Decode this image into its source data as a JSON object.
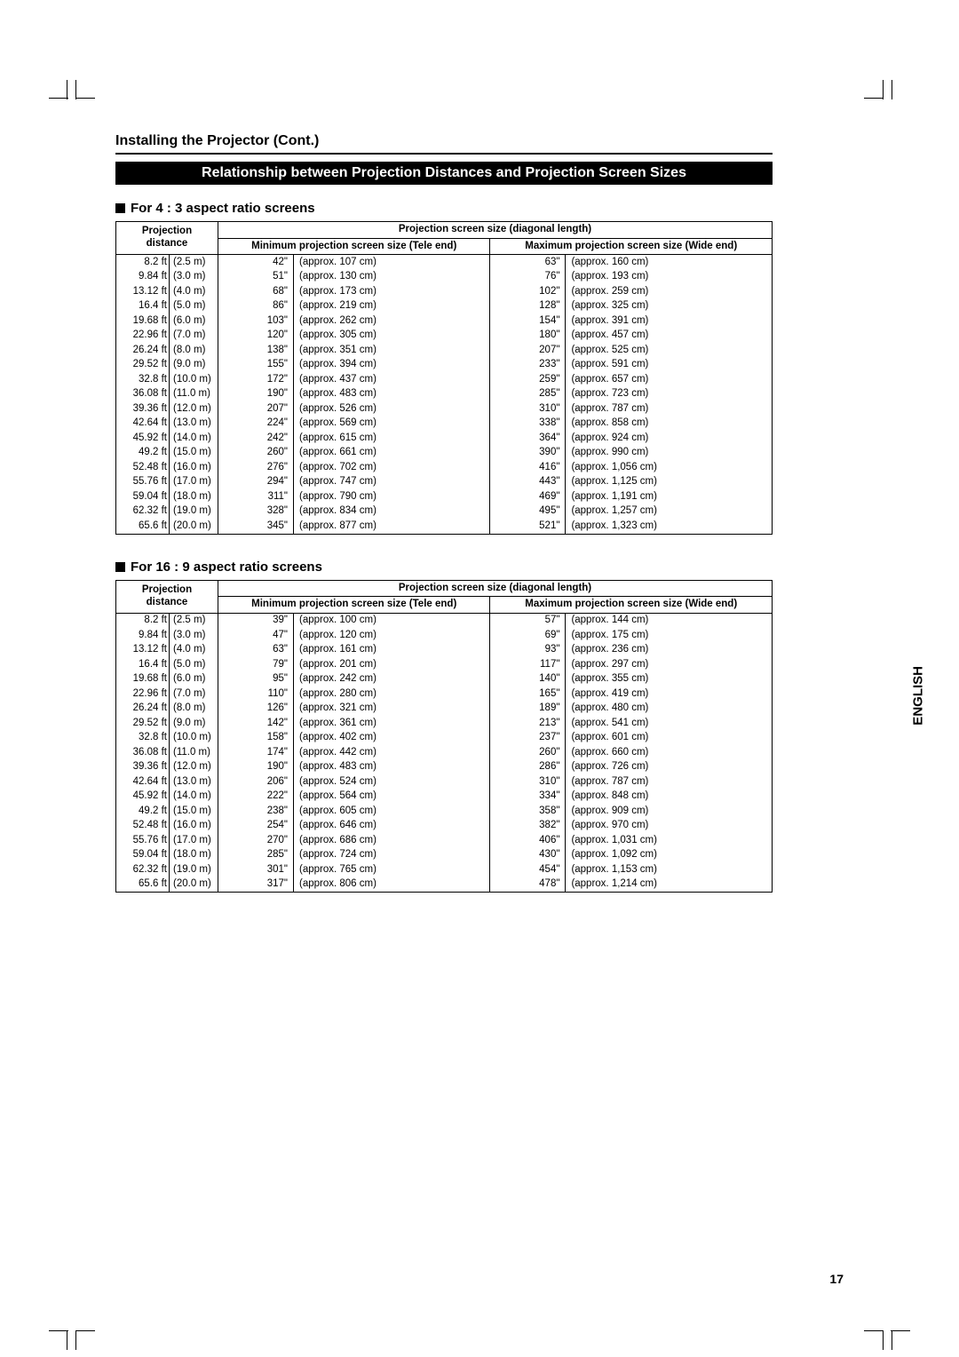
{
  "page": {
    "title": "Installing the Projector (Cont.)",
    "banner": "Relationship between Projection Distances and Projection Screen Sizes",
    "side_label": "ENGLISH",
    "page_number": "17"
  },
  "tables": {
    "t43": {
      "heading": "For 4 : 3 aspect ratio screens",
      "header": {
        "projection": "Projection",
        "distance": "distance",
        "screen_size": "Projection screen size (diagonal length)",
        "min": "Minimum projection screen size (Tele end)",
        "max": "Maximum projection screen size (Wide end)"
      },
      "rows": [
        {
          "dft": "8.2 ft",
          "dm": "(2.5 m)",
          "min_in": "42\"",
          "min_cm": "(approx. 107 cm)",
          "max_in": "63\"",
          "max_cm": "(approx. 160 cm)"
        },
        {
          "dft": "9.84 ft",
          "dm": "(3.0 m)",
          "min_in": "51\"",
          "min_cm": "(approx. 130 cm)",
          "max_in": "76\"",
          "max_cm": "(approx. 193 cm)"
        },
        {
          "dft": "13.12 ft",
          "dm": "(4.0 m)",
          "min_in": "68\"",
          "min_cm": "(approx. 173 cm)",
          "max_in": "102\"",
          "max_cm": "(approx. 259 cm)"
        },
        {
          "dft": "16.4 ft",
          "dm": "(5.0 m)",
          "min_in": "86\"",
          "min_cm": "(approx. 219 cm)",
          "max_in": "128\"",
          "max_cm": "(approx. 325 cm)"
        },
        {
          "dft": "19.68 ft",
          "dm": "(6.0 m)",
          "min_in": "103\"",
          "min_cm": "(approx. 262 cm)",
          "max_in": "154\"",
          "max_cm": "(approx. 391 cm)"
        },
        {
          "dft": "22.96 ft",
          "dm": "(7.0 m)",
          "min_in": "120\"",
          "min_cm": "(approx. 305 cm)",
          "max_in": "180\"",
          "max_cm": "(approx. 457 cm)"
        },
        {
          "dft": "26.24 ft",
          "dm": "(8.0 m)",
          "min_in": "138\"",
          "min_cm": "(approx. 351 cm)",
          "max_in": "207\"",
          "max_cm": "(approx. 525 cm)"
        },
        {
          "dft": "29.52 ft",
          "dm": "(9.0 m)",
          "min_in": "155\"",
          "min_cm": "(approx. 394 cm)",
          "max_in": "233\"",
          "max_cm": "(approx. 591 cm)"
        },
        {
          "dft": "32.8 ft",
          "dm": "(10.0 m)",
          "min_in": "172\"",
          "min_cm": "(approx. 437 cm)",
          "max_in": "259\"",
          "max_cm": "(approx. 657 cm)"
        },
        {
          "dft": "36.08 ft",
          "dm": "(11.0 m)",
          "min_in": "190\"",
          "min_cm": "(approx. 483 cm)",
          "max_in": "285\"",
          "max_cm": "(approx. 723 cm)"
        },
        {
          "dft": "39.36 ft",
          "dm": "(12.0 m)",
          "min_in": "207\"",
          "min_cm": "(approx. 526 cm)",
          "max_in": "310\"",
          "max_cm": "(approx. 787 cm)"
        },
        {
          "dft": "42.64 ft",
          "dm": "(13.0 m)",
          "min_in": "224\"",
          "min_cm": "(approx. 569 cm)",
          "max_in": "338\"",
          "max_cm": "(approx. 858 cm)"
        },
        {
          "dft": "45.92 ft",
          "dm": "(14.0 m)",
          "min_in": "242\"",
          "min_cm": "(approx. 615 cm)",
          "max_in": "364\"",
          "max_cm": "(approx. 924 cm)"
        },
        {
          "dft": "49.2 ft",
          "dm": "(15.0 m)",
          "min_in": "260\"",
          "min_cm": "(approx. 661 cm)",
          "max_in": "390\"",
          "max_cm": "(approx. 990 cm)"
        },
        {
          "dft": "52.48 ft",
          "dm": "(16.0 m)",
          "min_in": "276\"",
          "min_cm": "(approx. 702 cm)",
          "max_in": "416\"",
          "max_cm": "(approx. 1,056 cm)"
        },
        {
          "dft": "55.76 ft",
          "dm": "(17.0 m)",
          "min_in": "294\"",
          "min_cm": "(approx. 747 cm)",
          "max_in": "443\"",
          "max_cm": "(approx. 1,125 cm)"
        },
        {
          "dft": "59.04 ft",
          "dm": "(18.0 m)",
          "min_in": "311\"",
          "min_cm": "(approx. 790 cm)",
          "max_in": "469\"",
          "max_cm": "(approx. 1,191 cm)"
        },
        {
          "dft": "62.32 ft",
          "dm": "(19.0 m)",
          "min_in": "328\"",
          "min_cm": "(approx. 834 cm)",
          "max_in": "495\"",
          "max_cm": "(approx. 1,257 cm)"
        },
        {
          "dft": "65.6 ft",
          "dm": "(20.0 m)",
          "min_in": "345\"",
          "min_cm": "(approx. 877 cm)",
          "max_in": "521\"",
          "max_cm": "(approx. 1,323 cm)"
        }
      ]
    },
    "t169": {
      "heading": "For 16 : 9 aspect ratio screens",
      "header": {
        "projection": "Projection",
        "distance": "distance",
        "screen_size": "Projection screen size (diagonal length)",
        "min": "Minimum projection screen size (Tele end)",
        "max": "Maximum projection screen size (Wide end)"
      },
      "rows": [
        {
          "dft": "8.2 ft",
          "dm": "(2.5 m)",
          "min_in": "39\"",
          "min_cm": "(approx. 100 cm)",
          "max_in": "57\"",
          "max_cm": "(approx. 144 cm)"
        },
        {
          "dft": "9.84 ft",
          "dm": "(3.0 m)",
          "min_in": "47\"",
          "min_cm": "(approx. 120 cm)",
          "max_in": "69\"",
          "max_cm": "(approx. 175 cm)"
        },
        {
          "dft": "13.12 ft",
          "dm": "(4.0 m)",
          "min_in": "63\"",
          "min_cm": "(approx. 161 cm)",
          "max_in": "93\"",
          "max_cm": "(approx. 236 cm)"
        },
        {
          "dft": "16.4 ft",
          "dm": "(5.0 m)",
          "min_in": "79\"",
          "min_cm": "(approx. 201 cm)",
          "max_in": "117\"",
          "max_cm": "(approx. 297 cm)"
        },
        {
          "dft": "19.68 ft",
          "dm": "(6.0 m)",
          "min_in": "95\"",
          "min_cm": "(approx. 242 cm)",
          "max_in": "140\"",
          "max_cm": "(approx. 355 cm)"
        },
        {
          "dft": "22.96 ft",
          "dm": "(7.0 m)",
          "min_in": "110\"",
          "min_cm": "(approx. 280 cm)",
          "max_in": "165\"",
          "max_cm": "(approx. 419 cm)"
        },
        {
          "dft": "26.24 ft",
          "dm": "(8.0 m)",
          "min_in": "126\"",
          "min_cm": "(approx. 321 cm)",
          "max_in": "189\"",
          "max_cm": "(approx. 480 cm)"
        },
        {
          "dft": "29.52 ft",
          "dm": "(9.0 m)",
          "min_in": "142\"",
          "min_cm": "(approx. 361 cm)",
          "max_in": "213\"",
          "max_cm": "(approx. 541 cm)"
        },
        {
          "dft": "32.8 ft",
          "dm": "(10.0 m)",
          "min_in": "158\"",
          "min_cm": "(approx. 402 cm)",
          "max_in": "237\"",
          "max_cm": "(approx. 601 cm)"
        },
        {
          "dft": "36.08 ft",
          "dm": "(11.0 m)",
          "min_in": "174\"",
          "min_cm": "(approx. 442 cm)",
          "max_in": "260\"",
          "max_cm": "(approx. 660 cm)"
        },
        {
          "dft": "39.36 ft",
          "dm": "(12.0 m)",
          "min_in": "190\"",
          "min_cm": "(approx. 483 cm)",
          "max_in": "286\"",
          "max_cm": "(approx. 726 cm)"
        },
        {
          "dft": "42.64 ft",
          "dm": "(13.0 m)",
          "min_in": "206\"",
          "min_cm": "(approx. 524 cm)",
          "max_in": "310\"",
          "max_cm": "(approx. 787 cm)"
        },
        {
          "dft": "45.92 ft",
          "dm": "(14.0 m)",
          "min_in": "222\"",
          "min_cm": "(approx. 564 cm)",
          "max_in": "334\"",
          "max_cm": "(approx. 848 cm)"
        },
        {
          "dft": "49.2 ft",
          "dm": "(15.0 m)",
          "min_in": "238\"",
          "min_cm": "(approx. 605 cm)",
          "max_in": "358\"",
          "max_cm": "(approx. 909 cm)"
        },
        {
          "dft": "52.48 ft",
          "dm": "(16.0 m)",
          "min_in": "254\"",
          "min_cm": "(approx. 646 cm)",
          "max_in": "382\"",
          "max_cm": "(approx. 970 cm)"
        },
        {
          "dft": "55.76 ft",
          "dm": "(17.0 m)",
          "min_in": "270\"",
          "min_cm": "(approx. 686 cm)",
          "max_in": "406\"",
          "max_cm": "(approx. 1,031 cm)"
        },
        {
          "dft": "59.04 ft",
          "dm": "(18.0 m)",
          "min_in": "285\"",
          "min_cm": "(approx. 724 cm)",
          "max_in": "430\"",
          "max_cm": "(approx. 1,092 cm)"
        },
        {
          "dft": "62.32 ft",
          "dm": "(19.0 m)",
          "min_in": "301\"",
          "min_cm": "(approx. 765 cm)",
          "max_in": "454\"",
          "max_cm": "(approx. 1,153 cm)"
        },
        {
          "dft": "65.6 ft",
          "dm": "(20.0 m)",
          "min_in": "317\"",
          "min_cm": "(approx. 806 cm)",
          "max_in": "478\"",
          "max_cm": "(approx. 1,214 cm)"
        }
      ]
    }
  }
}
